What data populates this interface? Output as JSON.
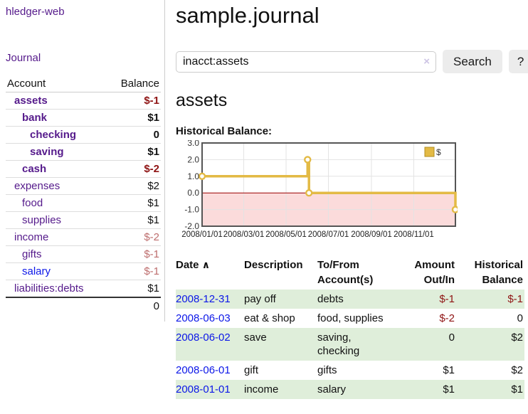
{
  "app": {
    "title": "hledger-web"
  },
  "sidebar": {
    "journal_link": "Journal",
    "headers": {
      "account": "Account",
      "balance": "Balance"
    },
    "rows": [
      {
        "account": "assets",
        "balance": "$-1"
      },
      {
        "account": "bank",
        "balance": "$1"
      },
      {
        "account": "checking",
        "balance": "0"
      },
      {
        "account": "saving",
        "balance": "$1"
      },
      {
        "account": "cash",
        "balance": "$-2"
      },
      {
        "account": "expenses",
        "balance": "$2"
      },
      {
        "account": "food",
        "balance": "$1"
      },
      {
        "account": "supplies",
        "balance": "$1"
      },
      {
        "account": "income",
        "balance": "$-2"
      },
      {
        "account": "gifts",
        "balance": "$-1"
      },
      {
        "account": "salary",
        "balance": "$-1"
      },
      {
        "account": "liabilities:debts",
        "balance": "$1"
      }
    ],
    "total": "0"
  },
  "main": {
    "title": "sample.journal",
    "search": {
      "value": "inacct:assets",
      "clear_icon": "×",
      "button": "Search",
      "help_button": "?"
    },
    "account_heading": "assets",
    "chart_label": "Historical Balance:"
  },
  "chart_data": {
    "type": "line",
    "title": "Historical Balance",
    "legend": "$",
    "legend_position": "top-right",
    "grid": true,
    "ylim": [
      -2,
      3
    ],
    "y_ticks": [
      3.0,
      2.0,
      1.0,
      0.0,
      -1.0,
      -2.0
    ],
    "x_tick_labels": [
      "2008/01/01",
      "2008/03/01",
      "2008/05/01",
      "2008/07/01",
      "2008/09/01",
      "2008/11/01"
    ],
    "x_tick_days": [
      0,
      60,
      121,
      182,
      244,
      305
    ],
    "x_range_days": [
      0,
      365
    ],
    "series": [
      {
        "name": "$",
        "step": true,
        "points": [
          {
            "date": "2008-01-01",
            "day": 0,
            "value": 1
          },
          {
            "date": "2008-06-01",
            "day": 152,
            "value": 2
          },
          {
            "date": "2008-06-03",
            "day": 154,
            "value": 0
          },
          {
            "date": "2008-12-31",
            "day": 365,
            "value": -1
          }
        ]
      }
    ],
    "line_color": "#e3ba45",
    "negative_fill": "#fbdbdb",
    "zero_line_color": "#990000"
  },
  "register": {
    "headers": {
      "date": "Date",
      "sort_icon": "∧",
      "description": "Description",
      "accounts": "To/From Account(s)",
      "amount": "Amount Out/In",
      "balance": "Historical Balance"
    },
    "rows": [
      {
        "date": "2008-12-31",
        "description": "pay off",
        "accounts": "debts",
        "amount": "$-1",
        "balance": "$-1"
      },
      {
        "date": "2008-06-03",
        "description": "eat & shop",
        "accounts": "food, supplies",
        "amount": "$-2",
        "balance": "0"
      },
      {
        "date": "2008-06-02",
        "description": "save",
        "accounts": "saving, checking",
        "amount": "0",
        "balance": "$2"
      },
      {
        "date": "2008-06-01",
        "description": "gift",
        "accounts": "gifts",
        "amount": "$1",
        "balance": "$2"
      },
      {
        "date": "2008-01-01",
        "description": "income",
        "accounts": "salary",
        "amount": "$1",
        "balance": "$1"
      }
    ]
  }
}
